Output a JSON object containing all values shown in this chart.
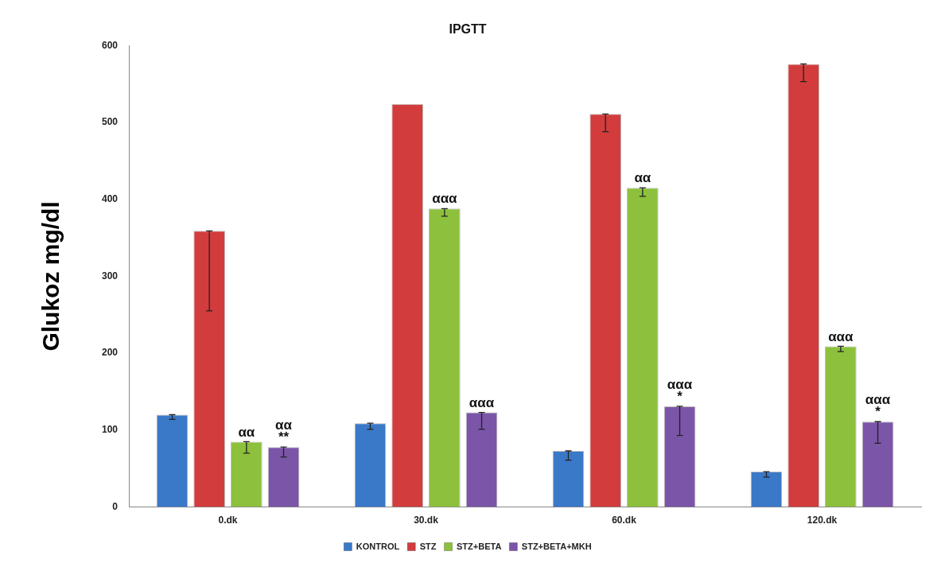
{
  "chart_data": {
    "type": "bar",
    "title": "IPGTT",
    "ylabel": "Glukoz mg/dl",
    "categories": [
      "0.dk",
      "30.dk",
      "60.dk",
      "120.dk"
    ],
    "series": [
      {
        "name": "KONTROL",
        "color": "#3a78c8",
        "values": [
          120,
          109,
          73,
          46
        ],
        "errors": [
          [
            114,
            120
          ],
          [
            101,
            109
          ],
          [
            61,
            73
          ],
          [
            39,
            46
          ]
        ]
      },
      {
        "name": "STZ",
        "color": "#d23c3c",
        "values": [
          359,
          524,
          511,
          576
        ],
        "errors": [
          [
            255,
            359
          ],
          null,
          [
            488,
            511
          ],
          [
            553,
            576
          ]
        ]
      },
      {
        "name": "STZ+BETA",
        "color": "#8dc03c",
        "values": [
          85,
          388,
          415,
          209
        ],
        "errors": [
          [
            70,
            85
          ],
          [
            378,
            388
          ],
          [
            404,
            415
          ],
          [
            202,
            209
          ]
        ],
        "value_labels": [
          "αα",
          "ααα",
          "αα",
          "ααα"
        ]
      },
      {
        "name": "STZ+BETA+MKH",
        "color": "#7b55a8",
        "values": [
          78,
          123,
          131,
          111
        ],
        "errors": [
          [
            65,
            78
          ],
          [
            101,
            123
          ],
          [
            93,
            131
          ],
          [
            83,
            111
          ]
        ],
        "value_labels": [
          "αα\n**",
          "ααα",
          "ααα\n*",
          "ααα\n*"
        ]
      }
    ],
    "ylim": [
      0,
      600
    ],
    "yticks": [
      0,
      100,
      200,
      300,
      400,
      500,
      600
    ],
    "grid": false,
    "legend": "bottom"
  }
}
